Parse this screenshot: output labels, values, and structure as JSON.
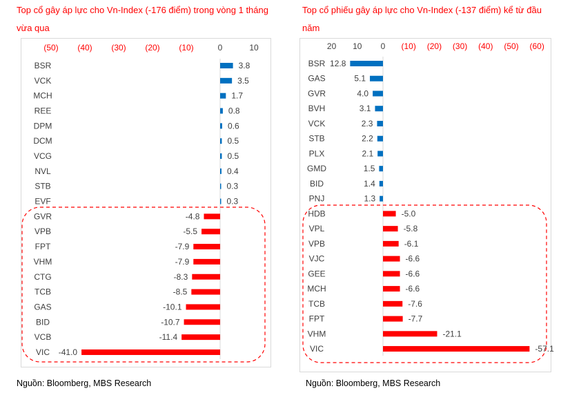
{
  "chart_data": [
    {
      "type": "bar",
      "orientation": "horizontal",
      "title": "Top cổ gây áp lực cho Vn-Index (-176 điểm) trong vòng 1 tháng vừa qua",
      "categories": [
        "BSR",
        "VCK",
        "MCH",
        "REE",
        "DPM",
        "DCM",
        "VCG",
        "NVL",
        "STB",
        "EVF",
        "GVR",
        "VPB",
        "FPT",
        "VHM",
        "CTG",
        "TCB",
        "GAS",
        "BID",
        "VCB",
        "VIC"
      ],
      "values": [
        3.8,
        3.5,
        1.7,
        0.8,
        0.6,
        0.5,
        0.5,
        0.4,
        0.3,
        0.3,
        -4.8,
        -5.5,
        -7.9,
        -7.9,
        -8.3,
        -8.5,
        -10.1,
        -10.7,
        -11.4,
        -41.0
      ],
      "xlim": [
        -50,
        10
      ],
      "x_ticks": [
        "(50)",
        "(40)",
        "(30)",
        "(20)",
        "(10)",
        "0",
        "10"
      ],
      "x_tick_values": [
        -50,
        -40,
        -30,
        -20,
        -10,
        0,
        10
      ],
      "reversed": false,
      "grid": false,
      "source": "Nguồn: Bloomberg, MBS Research"
    },
    {
      "type": "bar",
      "orientation": "horizontal",
      "title": "Top cổ phiếu gây áp lực cho Vn-Index (-137 điểm) kể từ đầu năm",
      "categories": [
        "BSR",
        "GAS",
        "GVR",
        "BVH",
        "VCK",
        "STB",
        "PLX",
        "GMD",
        "BID",
        "PNJ",
        "HDB",
        "VPL",
        "VPB",
        "VJC",
        "GEE",
        "MCH",
        "TCB",
        "FPT",
        "VHM",
        "VIC"
      ],
      "values": [
        12.8,
        5.1,
        4.0,
        3.1,
        2.3,
        2.2,
        2.1,
        1.5,
        1.4,
        1.3,
        -5.0,
        -5.8,
        -6.1,
        -6.6,
        -6.6,
        -6.6,
        -7.6,
        -7.7,
        -21.1,
        -57.1
      ],
      "xlim": [
        -60,
        20
      ],
      "x_ticks": [
        "20",
        "10",
        "0",
        "(10)",
        "(20)",
        "(30)",
        "(40)",
        "(50)",
        "(60)"
      ],
      "x_tick_values": [
        20,
        10,
        0,
        -10,
        -20,
        -30,
        -40,
        -50,
        -60
      ],
      "reversed": true,
      "grid": false,
      "source": "Nguồn: Bloomberg, MBS Research"
    }
  ],
  "colors": {
    "positive": "#0070c0",
    "negative": "#ff0000",
    "title": "#ff0000",
    "negative_tick": "#ff0000"
  }
}
